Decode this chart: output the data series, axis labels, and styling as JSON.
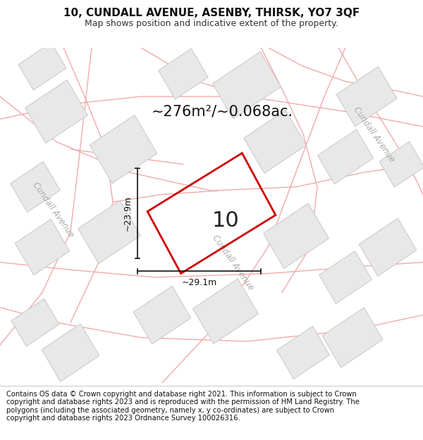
{
  "title": "10, CUNDALL AVENUE, ASENBY, THIRSK, YO7 3QF",
  "subtitle": "Map shows position and indicative extent of the property.",
  "area_label": "~276m²/~0.068ac.",
  "property_number": "10",
  "dim_vertical": "~23.9m",
  "dim_horizontal": "~29.1m",
  "street_label_diag": "Cundall Avenue",
  "street_label_tr": "Cundall Avenue",
  "footer": "Contains OS data © Crown copyright and database right 2021. This information is subject to Crown copyright and database rights 2023 and is reproduced with the permission of HM Land Registry. The polygons (including the associated geometry, namely x, y co-ordinates) are subject to Crown copyright and database rights 2023 Ordnance Survey 100026316.",
  "bg_color": "#ffffff",
  "map_bg": "#ffffff",
  "plot_color": "#cc0000",
  "road_color": "#f0aaaa",
  "road_color2": "#f5b8b8",
  "poly_fill": "#e8e8e8",
  "poly_edge": "#cccccc",
  "title_fontsize": 11,
  "subtitle_fontsize": 9,
  "footer_fontsize": 7.2,
  "dim_color": "#111111",
  "label_color": "#aaaaaa",
  "number_fontsize": 22,
  "area_fontsize": 15
}
